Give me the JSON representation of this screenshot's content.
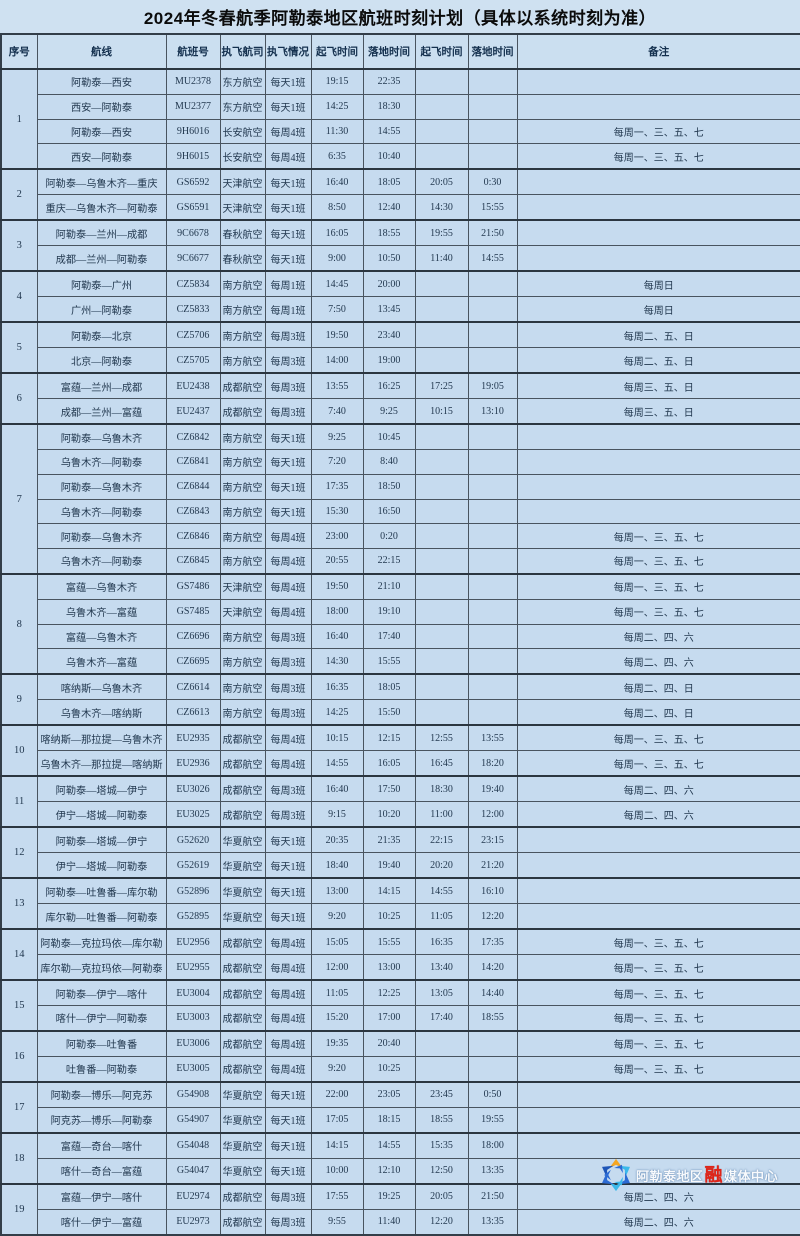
{
  "title": "2024年冬春航季阿勒泰地区航班时刻计划（具体以系统时刻为准）",
  "colors": {
    "page_bg": "#cfe1f1",
    "cell_bg": "#c6dbef",
    "border": "#49545f",
    "cell_text": "#22384f",
    "header_text": "#14304e",
    "title_text": "#0b0b0b",
    "watermark_red": "#e02317",
    "logo_blue": "#2c6bd4",
    "logo_cyan": "#3bb9ea",
    "logo_orange": "#f5a623"
  },
  "watermark": {
    "left": "阿勒泰地区",
    "red": "融",
    "right": "媒体中心"
  },
  "table": {
    "columns": [
      "序号",
      "航线",
      "航班号",
      "执飞航司",
      "执飞情况",
      "起飞时间",
      "落地时间",
      "起飞时间",
      "落地时间",
      "备注"
    ],
    "column_keys": [
      "no",
      "route",
      "flight-no",
      "airline",
      "frequency",
      "dep-time-1",
      "arr-time-1",
      "dep-time-2",
      "arr-time-2",
      "remark"
    ],
    "groups": [
      {
        "no": "1",
        "rows": [
          [
            "阿勒泰—西安",
            "MU2378",
            "东方航空",
            "每天1班",
            "19:15",
            "22:35",
            "",
            "",
            ""
          ],
          [
            "西安—阿勒泰",
            "MU2377",
            "东方航空",
            "每天1班",
            "14:25",
            "18:30",
            "",
            "",
            ""
          ],
          [
            "阿勒泰—西安",
            "9H6016",
            "长安航空",
            "每周4班",
            "11:30",
            "14:55",
            "",
            "",
            "每周一、三、五、七"
          ],
          [
            "西安—阿勒泰",
            "9H6015",
            "长安航空",
            "每周4班",
            "6:35",
            "10:40",
            "",
            "",
            "每周一、三、五、七"
          ]
        ]
      },
      {
        "no": "2",
        "rows": [
          [
            "阿勒泰—乌鲁木齐—重庆",
            "GS6592",
            "天津航空",
            "每天1班",
            "16:40",
            "18:05",
            "20:05",
            "0:30",
            ""
          ],
          [
            "重庆—乌鲁木齐—阿勒泰",
            "GS6591",
            "天津航空",
            "每天1班",
            "8:50",
            "12:40",
            "14:30",
            "15:55",
            ""
          ]
        ]
      },
      {
        "no": "3",
        "rows": [
          [
            "阿勒泰—兰州—成都",
            "9C6678",
            "春秋航空",
            "每天1班",
            "16:05",
            "18:55",
            "19:55",
            "21:50",
            ""
          ],
          [
            "成都—兰州—阿勒泰",
            "9C6677",
            "春秋航空",
            "每天1班",
            "9:00",
            "10:50",
            "11:40",
            "14:55",
            ""
          ]
        ]
      },
      {
        "no": "4",
        "rows": [
          [
            "阿勒泰—广州",
            "CZ5834",
            "南方航空",
            "每周1班",
            "14:45",
            "20:00",
            "",
            "",
            "每周日"
          ],
          [
            "广州—阿勒泰",
            "CZ5833",
            "南方航空",
            "每周1班",
            "7:50",
            "13:45",
            "",
            "",
            "每周日"
          ]
        ]
      },
      {
        "no": "5",
        "rows": [
          [
            "阿勒泰—北京",
            "CZ5706",
            "南方航空",
            "每周3班",
            "19:50",
            "23:40",
            "",
            "",
            "每周二、五、日"
          ],
          [
            "北京—阿勒泰",
            "CZ5705",
            "南方航空",
            "每周3班",
            "14:00",
            "19:00",
            "",
            "",
            "每周二、五、日"
          ]
        ]
      },
      {
        "no": "6",
        "rows": [
          [
            "富蕴—兰州—成都",
            "EU2438",
            "成都航空",
            "每周3班",
            "13:55",
            "16:25",
            "17:25",
            "19:05",
            "每周三、五、日"
          ],
          [
            "成都—兰州—富蕴",
            "EU2437",
            "成都航空",
            "每周3班",
            "7:40",
            "9:25",
            "10:15",
            "13:10",
            "每周三、五、日"
          ]
        ]
      },
      {
        "no": "7",
        "rows": [
          [
            "阿勒泰—乌鲁木齐",
            "CZ6842",
            "南方航空",
            "每天1班",
            "9:25",
            "10:45",
            "",
            "",
            ""
          ],
          [
            "乌鲁木齐—阿勒泰",
            "CZ6841",
            "南方航空",
            "每天1班",
            "7:20",
            "8:40",
            "",
            "",
            ""
          ],
          [
            "阿勒泰—乌鲁木齐",
            "CZ6844",
            "南方航空",
            "每天1班",
            "17:35",
            "18:50",
            "",
            "",
            ""
          ],
          [
            "乌鲁木齐—阿勒泰",
            "CZ6843",
            "南方航空",
            "每天1班",
            "15:30",
            "16:50",
            "",
            "",
            ""
          ],
          [
            "阿勒泰—乌鲁木齐",
            "CZ6846",
            "南方航空",
            "每周4班",
            "23:00",
            "0:20",
            "",
            "",
            "每周一、三、五、七"
          ],
          [
            "乌鲁木齐—阿勒泰",
            "CZ6845",
            "南方航空",
            "每周4班",
            "20:55",
            "22:15",
            "",
            "",
            "每周一、三、五、七"
          ]
        ]
      },
      {
        "no": "8",
        "rows": [
          [
            "富蕴—乌鲁木齐",
            "GS7486",
            "天津航空",
            "每周4班",
            "19:50",
            "21:10",
            "",
            "",
            "每周一、三、五、七"
          ],
          [
            "乌鲁木齐—富蕴",
            "GS7485",
            "天津航空",
            "每周4班",
            "18:00",
            "19:10",
            "",
            "",
            "每周一、三、五、七"
          ],
          [
            "富蕴—乌鲁木齐",
            "CZ6696",
            "南方航空",
            "每周3班",
            "16:40",
            "17:40",
            "",
            "",
            "每周二、四、六"
          ],
          [
            "乌鲁木齐—富蕴",
            "CZ6695",
            "南方航空",
            "每周3班",
            "14:30",
            "15:55",
            "",
            "",
            "每周二、四、六"
          ]
        ]
      },
      {
        "no": "9",
        "rows": [
          [
            "喀纳斯—乌鲁木齐",
            "CZ6614",
            "南方航空",
            "每周3班",
            "16:35",
            "18:05",
            "",
            "",
            "每周二、四、日"
          ],
          [
            "乌鲁木齐—喀纳斯",
            "CZ6613",
            "南方航空",
            "每周3班",
            "14:25",
            "15:50",
            "",
            "",
            "每周二、四、日"
          ]
        ]
      },
      {
        "no": "10",
        "rows": [
          [
            "喀纳斯—那拉提—乌鲁木齐",
            "EU2935",
            "成都航空",
            "每周4班",
            "10:15",
            "12:15",
            "12:55",
            "13:55",
            "每周一、三、五、七"
          ],
          [
            "乌鲁木齐—那拉提—喀纳斯",
            "EU2936",
            "成都航空",
            "每周4班",
            "14:55",
            "16:05",
            "16:45",
            "18:20",
            "每周一、三、五、七"
          ]
        ]
      },
      {
        "no": "11",
        "rows": [
          [
            "阿勒泰—塔城—伊宁",
            "EU3026",
            "成都航空",
            "每周3班",
            "16:40",
            "17:50",
            "18:30",
            "19:40",
            "每周二、四、六"
          ],
          [
            "伊宁—塔城—阿勒泰",
            "EU3025",
            "成都航空",
            "每周3班",
            "9:15",
            "10:20",
            "11:00",
            "12:00",
            "每周二、四、六"
          ]
        ]
      },
      {
        "no": "12",
        "rows": [
          [
            "阿勒泰—塔城—伊宁",
            "G52620",
            "华夏航空",
            "每天1班",
            "20:35",
            "21:35",
            "22:15",
            "23:15",
            ""
          ],
          [
            "伊宁—塔城—阿勒泰",
            "G52619",
            "华夏航空",
            "每天1班",
            "18:40",
            "19:40",
            "20:20",
            "21:20",
            ""
          ]
        ]
      },
      {
        "no": "13",
        "rows": [
          [
            "阿勒泰—吐鲁番—库尔勒",
            "G52896",
            "华夏航空",
            "每天1班",
            "13:00",
            "14:15",
            "14:55",
            "16:10",
            ""
          ],
          [
            "库尔勒—吐鲁番—阿勒泰",
            "G52895",
            "华夏航空",
            "每天1班",
            "9:20",
            "10:25",
            "11:05",
            "12:20",
            ""
          ]
        ]
      },
      {
        "no": "14",
        "rows": [
          [
            "阿勒泰—克拉玛依—库尔勒",
            "EU2956",
            "成都航空",
            "每周4班",
            "15:05",
            "15:55",
            "16:35",
            "17:35",
            "每周一、三、五、七"
          ],
          [
            "库尔勒—克拉玛依—阿勒泰",
            "EU2955",
            "成都航空",
            "每周4班",
            "12:00",
            "13:00",
            "13:40",
            "14:20",
            "每周一、三、五、七"
          ]
        ]
      },
      {
        "no": "15",
        "rows": [
          [
            "阿勒泰—伊宁—喀什",
            "EU3004",
            "成都航空",
            "每周4班",
            "11:05",
            "12:25",
            "13:05",
            "14:40",
            "每周一、三、五、七"
          ],
          [
            "喀什—伊宁—阿勒泰",
            "EU3003",
            "成都航空",
            "每周4班",
            "15:20",
            "17:00",
            "17:40",
            "18:55",
            "每周一、三、五、七"
          ]
        ]
      },
      {
        "no": "16",
        "rows": [
          [
            "阿勒泰—吐鲁番",
            "EU3006",
            "成都航空",
            "每周4班",
            "19:35",
            "20:40",
            "",
            "",
            "每周一、三、五、七"
          ],
          [
            "吐鲁番—阿勒泰",
            "EU3005",
            "成都航空",
            "每周4班",
            "9:20",
            "10:25",
            "",
            "",
            "每周一、三、五、七"
          ]
        ]
      },
      {
        "no": "17",
        "rows": [
          [
            "阿勒泰—博乐—阿克苏",
            "G54908",
            "华夏航空",
            "每天1班",
            "22:00",
            "23:05",
            "23:45",
            "0:50",
            ""
          ],
          [
            "阿克苏—博乐—阿勒泰",
            "G54907",
            "华夏航空",
            "每天1班",
            "17:05",
            "18:15",
            "18:55",
            "19:55",
            ""
          ]
        ]
      },
      {
        "no": "18",
        "rows": [
          [
            "富蕴—奇台—喀什",
            "G54048",
            "华夏航空",
            "每天1班",
            "14:15",
            "14:55",
            "15:35",
            "18:00",
            ""
          ],
          [
            "喀什—奇台—富蕴",
            "G54047",
            "华夏航空",
            "每天1班",
            "10:00",
            "12:10",
            "12:50",
            "13:35",
            ""
          ]
        ]
      },
      {
        "no": "19",
        "rows": [
          [
            "富蕴—伊宁—喀什",
            "EU2974",
            "成都航空",
            "每周3班",
            "17:55",
            "19:25",
            "20:05",
            "21:50",
            "每周二、四、六"
          ],
          [
            "喀什—伊宁—富蕴",
            "EU2973",
            "成都航空",
            "每周3班",
            "9:55",
            "11:40",
            "12:20",
            "13:35",
            "每周二、四、六"
          ]
        ]
      }
    ]
  }
}
